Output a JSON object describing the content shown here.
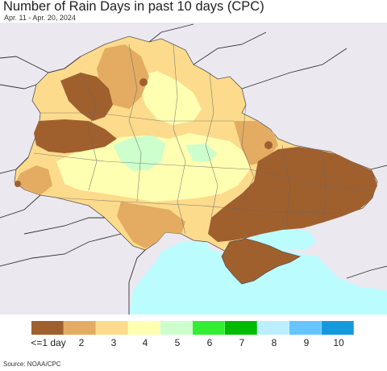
{
  "header": {
    "title": "Number of Rain Days in past 10 days (CPC)",
    "subtitle": "Apr. 11 - Apr. 20, 2024"
  },
  "legend": {
    "colors": [
      "#a0602e",
      "#e3ac62",
      "#fddb8c",
      "#ffffb2",
      "#ccffcc",
      "#33ee33",
      "#00bb00",
      "#bbeeff",
      "#66c4ff",
      "#1599dd"
    ],
    "labels": [
      "<=1 day",
      "2",
      "3",
      "4",
      "5",
      "6",
      "7",
      "8",
      "9",
      "10"
    ]
  },
  "footer": {
    "source": "Source: NOAA/CPC"
  }
}
